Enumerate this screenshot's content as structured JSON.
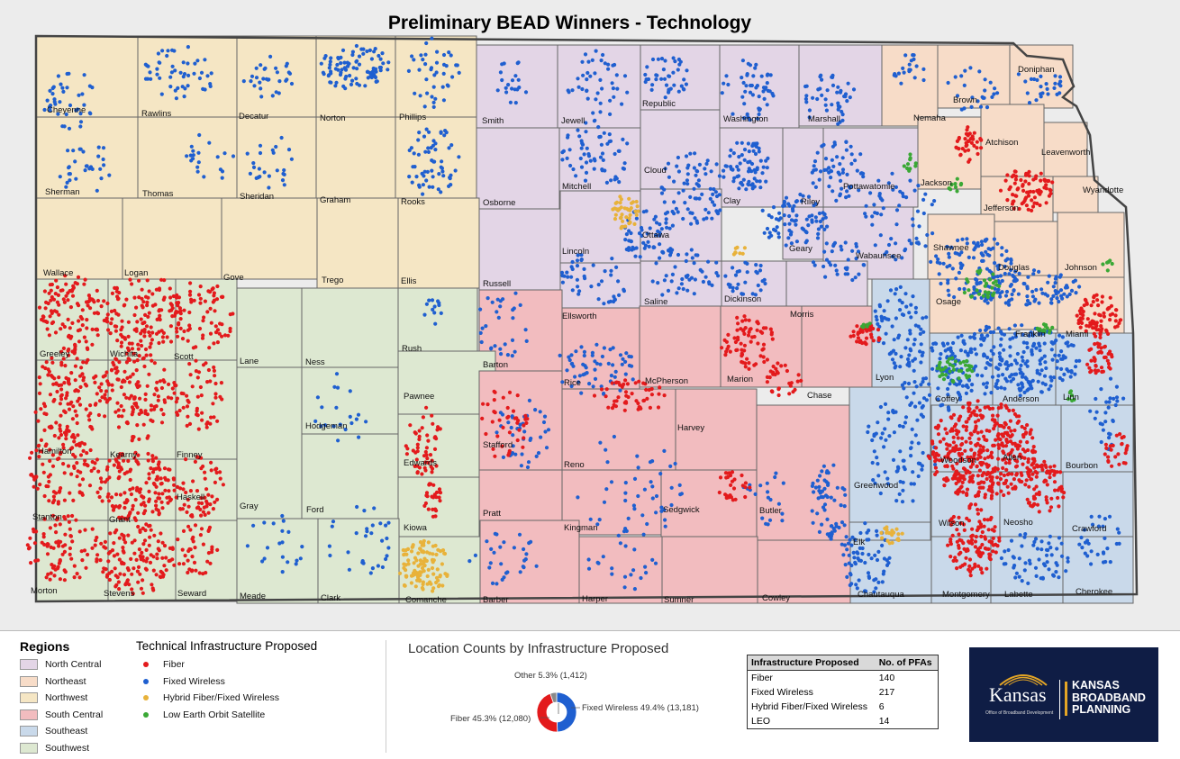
{
  "map": {
    "title": "Preliminary BEAD Winners - Technology",
    "counties": [
      {
        "name": "Cheyenne",
        "region": "Northwest"
      },
      {
        "name": "Rawlins",
        "region": "Northwest"
      },
      {
        "name": "Decatur",
        "region": "Northwest"
      },
      {
        "name": "Norton",
        "region": "Northwest"
      },
      {
        "name": "Phillips",
        "region": "Northwest"
      },
      {
        "name": "Smith",
        "region": "North Central"
      },
      {
        "name": "Jewell",
        "region": "North Central"
      },
      {
        "name": "Republic",
        "region": "North Central"
      },
      {
        "name": "Washington",
        "region": "North Central"
      },
      {
        "name": "Marshall",
        "region": "North Central"
      },
      {
        "name": "Nemaha",
        "region": "Northeast"
      },
      {
        "name": "Brown",
        "region": "Northeast"
      },
      {
        "name": "Doniphan",
        "region": "Northeast"
      },
      {
        "name": "Sherman",
        "region": "Northwest"
      },
      {
        "name": "Thomas",
        "region": "Northwest"
      },
      {
        "name": "Sheridan",
        "region": "Northwest"
      },
      {
        "name": "Graham",
        "region": "Northwest"
      },
      {
        "name": "Rooks",
        "region": "Northwest"
      },
      {
        "name": "Osborne",
        "region": "North Central"
      },
      {
        "name": "Mitchell",
        "region": "North Central"
      },
      {
        "name": "Cloud",
        "region": "North Central"
      },
      {
        "name": "Clay",
        "region": "North Central"
      },
      {
        "name": "Riley",
        "region": "North Central"
      },
      {
        "name": "Pottawatomie",
        "region": "North Central"
      },
      {
        "name": "Jackson",
        "region": "Northeast"
      },
      {
        "name": "Atchison",
        "region": "Northeast"
      },
      {
        "name": "Leavenworth",
        "region": "Northeast"
      },
      {
        "name": "Jefferson",
        "region": "Northeast"
      },
      {
        "name": "Wyandotte",
        "region": "Northeast"
      },
      {
        "name": "Wallace",
        "region": "Northwest"
      },
      {
        "name": "Logan",
        "region": "Northwest"
      },
      {
        "name": "Gove",
        "region": "Northwest"
      },
      {
        "name": "Trego",
        "region": "Northwest"
      },
      {
        "name": "Ellis",
        "region": "Northwest"
      },
      {
        "name": "Russell",
        "region": "North Central"
      },
      {
        "name": "Lincoln",
        "region": "North Central"
      },
      {
        "name": "Ottawa",
        "region": "North Central"
      },
      {
        "name": "Geary",
        "region": "North Central"
      },
      {
        "name": "Wabaunsee",
        "region": "North Central"
      },
      {
        "name": "Shawnee",
        "region": "Northeast"
      },
      {
        "name": "Douglas",
        "region": "Northeast"
      },
      {
        "name": "Johnson",
        "region": "Northeast"
      },
      {
        "name": "Saline",
        "region": "North Central"
      },
      {
        "name": "Dickinson",
        "region": "North Central"
      },
      {
        "name": "Morris",
        "region": "North Central"
      },
      {
        "name": "Ellsworth",
        "region": "North Central"
      },
      {
        "name": "Osage",
        "region": "Northeast"
      },
      {
        "name": "Franklin",
        "region": "Northeast"
      },
      {
        "name": "Miami",
        "region": "Northeast"
      },
      {
        "name": "Greeley",
        "region": "Southwest"
      },
      {
        "name": "Wichita",
        "region": "Southwest"
      },
      {
        "name": "Scott",
        "region": "Southwest"
      },
      {
        "name": "Lane",
        "region": "Southwest"
      },
      {
        "name": "Ness",
        "region": "Southwest"
      },
      {
        "name": "Rush",
        "region": "Southwest"
      },
      {
        "name": "Barton",
        "region": "South Central"
      },
      {
        "name": "Rice",
        "region": "South Central"
      },
      {
        "name": "McPherson",
        "region": "South Central"
      },
      {
        "name": "Marion",
        "region": "South Central"
      },
      {
        "name": "Chase",
        "region": "South Central"
      },
      {
        "name": "Lyon",
        "region": "Southeast"
      },
      {
        "name": "Coffey",
        "region": "Southeast"
      },
      {
        "name": "Anderson",
        "region": "Southeast"
      },
      {
        "name": "Linn",
        "region": "Southeast"
      },
      {
        "name": "Pawnee",
        "region": "Southwest"
      },
      {
        "name": "Hodgeman",
        "region": "Southwest"
      },
      {
        "name": "Hamilton",
        "region": "Southwest"
      },
      {
        "name": "Kearny",
        "region": "Southwest"
      },
      {
        "name": "Finney",
        "region": "Southwest"
      },
      {
        "name": "Edwards",
        "region": "Southwest"
      },
      {
        "name": "Stafford",
        "region": "South Central"
      },
      {
        "name": "Reno",
        "region": "South Central"
      },
      {
        "name": "Harvey",
        "region": "South Central"
      },
      {
        "name": "Woodson",
        "region": "Southeast"
      },
      {
        "name": "Allen",
        "region": "Southeast"
      },
      {
        "name": "Bourbon",
        "region": "Southeast"
      },
      {
        "name": "Greenwood",
        "region": "Southeast"
      },
      {
        "name": "Gray",
        "region": "Southwest"
      },
      {
        "name": "Ford",
        "region": "Southwest"
      },
      {
        "name": "Stanton",
        "region": "Southwest"
      },
      {
        "name": "Grant",
        "region": "Southwest"
      },
      {
        "name": "Haskell",
        "region": "Southwest"
      },
      {
        "name": "Kiowa",
        "region": "Southwest"
      },
      {
        "name": "Pratt",
        "region": "South Central"
      },
      {
        "name": "Kingman",
        "region": "South Central"
      },
      {
        "name": "Sedgwick",
        "region": "South Central"
      },
      {
        "name": "Butler",
        "region": "South Central"
      },
      {
        "name": "Elk",
        "region": "Southeast"
      },
      {
        "name": "Wilson",
        "region": "Southeast"
      },
      {
        "name": "Neosho",
        "region": "Southeast"
      },
      {
        "name": "Crawford",
        "region": "Southeast"
      },
      {
        "name": "Morton",
        "region": "Southwest"
      },
      {
        "name": "Stevens",
        "region": "Southwest"
      },
      {
        "name": "Seward",
        "region": "Southwest"
      },
      {
        "name": "Meade",
        "region": "Southwest"
      },
      {
        "name": "Clark",
        "region": "Southwest"
      },
      {
        "name": "Comanche",
        "region": "Southwest"
      },
      {
        "name": "Barber",
        "region": "South Central"
      },
      {
        "name": "Harper",
        "region": "South Central"
      },
      {
        "name": "Sumner",
        "region": "South Central"
      },
      {
        "name": "Cowley",
        "region": "South Central"
      },
      {
        "name": "Chautauqua",
        "region": "Southeast"
      },
      {
        "name": "Montgomery",
        "region": "Southeast"
      },
      {
        "name": "Labette",
        "region": "Southeast"
      },
      {
        "name": "Cherokee",
        "region": "Southeast"
      }
    ]
  },
  "legend": {
    "regions_title": "Regions",
    "regions": [
      {
        "label": "North Central",
        "color": "#e3d5e6"
      },
      {
        "label": "Northeast",
        "color": "#f7dcc8"
      },
      {
        "label": "Northwest",
        "color": "#f5e6c4"
      },
      {
        "label": "South Central",
        "color": "#f2bcbf"
      },
      {
        "label": "Southeast",
        "color": "#c9d9ea"
      },
      {
        "label": "Southwest",
        "color": "#dde8d1"
      }
    ],
    "tech_title": "Technical Infrastructure Proposed",
    "tech": [
      {
        "label": "Fiber",
        "color": "#e31a1c"
      },
      {
        "label": "Fixed Wireless",
        "color": "#1f5fd0"
      },
      {
        "label": "Hybrid Fiber/Fixed Wireless",
        "color": "#e8b23a"
      },
      {
        "label": "Low Earth Orbit Satellite",
        "color": "#3aa835"
      }
    ]
  },
  "donut": {
    "title": "Location Counts by Infrastructure Proposed",
    "labels": {
      "other": "Other 5.3% (1,412)",
      "fixed": "Fixed Wireless 49.4% (13,181)",
      "fiber": "Fiber 45.3% (12,080)"
    }
  },
  "chart_data": {
    "type": "pie",
    "title": "Location Counts by Infrastructure Proposed",
    "categories": [
      "Fixed Wireless",
      "Fiber",
      "Other"
    ],
    "values": [
      13181,
      12080,
      1412
    ],
    "percents": [
      49.4,
      45.3,
      5.3
    ],
    "colors": [
      "#1f5fd0",
      "#e31a1c",
      "#8a8a8a"
    ]
  },
  "pfa_table": {
    "headers": [
      "Infrastructure Proposed",
      "No. of PFAs"
    ],
    "rows": [
      [
        "Fiber",
        "140"
      ],
      [
        "Fixed Wireless",
        "217"
      ],
      [
        "Hybrid Fiber/Fixed Wireless",
        "6"
      ],
      [
        "LEO",
        "14"
      ]
    ]
  },
  "logo": {
    "kansas": "Kansas",
    "sub": "Office of Broadband Development",
    "bp_line1": "KANSAS",
    "bp_line2": "BROADBAND",
    "bp_line3": "PLANNING"
  }
}
